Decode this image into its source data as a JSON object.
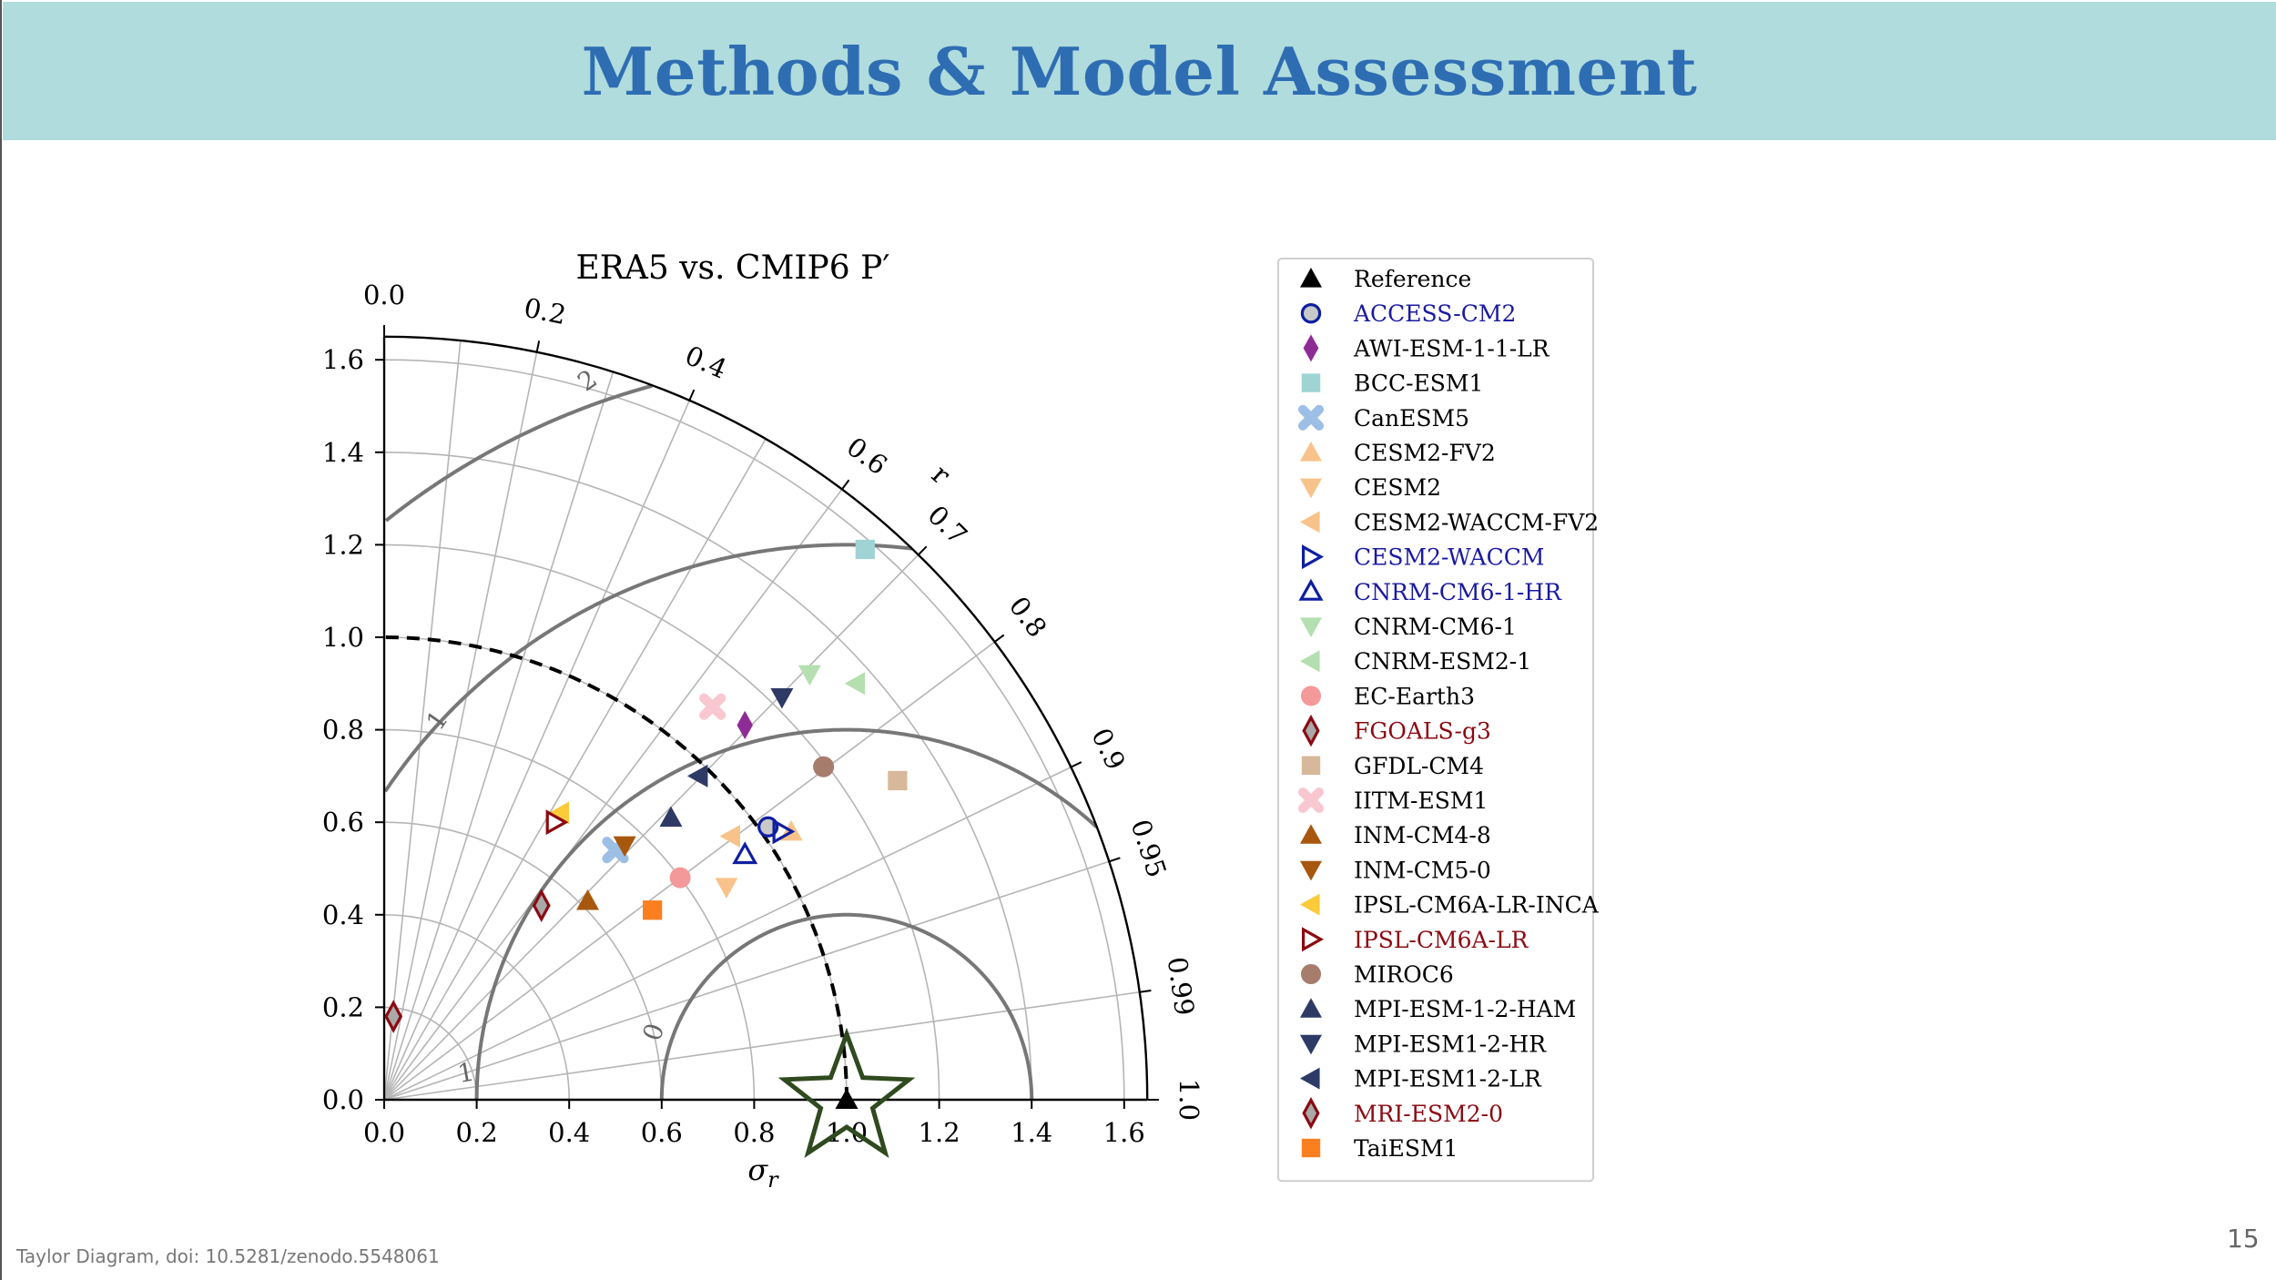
{
  "slide": {
    "title": "Methods & Model Assessment",
    "footnote": "Taylor Diagram, doi: 10.5281/zenodo.5548061",
    "page_number": "15"
  },
  "chart_data": {
    "type": "scatter",
    "subtype": "taylor-diagram",
    "title": "ERA5 vs. CMIP6 P′",
    "xlabel": "σr",
    "corr_axis_label": "r",
    "std_ticks": [
      "0.0",
      "0.2",
      "0.4",
      "0.6",
      "0.8",
      "1.0",
      "1.2",
      "1.4",
      "1.6"
    ],
    "std_tick_values": [
      0,
      0.2,
      0.4,
      0.6,
      0.8,
      1.0,
      1.2,
      1.4,
      1.6
    ],
    "corr_ticks": [
      {
        "value": 0.0,
        "label": "0.0"
      },
      {
        "value": 0.2,
        "label": "0.2"
      },
      {
        "value": 0.4,
        "label": "0.4"
      },
      {
        "value": 0.6,
        "label": "0.6"
      },
      {
        "value": 0.7,
        "label": "0.7"
      },
      {
        "value": 0.8,
        "label": "0.8"
      },
      {
        "value": 0.9,
        "label": "0.9"
      },
      {
        "value": 0.95,
        "label": "0.95"
      },
      {
        "value": 0.99,
        "label": "0.99"
      },
      {
        "value": 1.0,
        "label": "1.0"
      }
    ],
    "rmsd_contours": [
      {
        "value": 0,
        "label": "0"
      },
      {
        "value": 1,
        "label": "1"
      },
      {
        "value": 2,
        "label": "2"
      }
    ],
    "rmsd_contour_values": [
      0.4,
      0.8,
      1.2,
      1.6,
      2.0
    ],
    "std_range": [
      0,
      1.65
    ],
    "grid": true,
    "legend_position": "right",
    "reference": {
      "name": "Reference",
      "x": 1.0,
      "y": 0.0
    },
    "series": [
      {
        "name": "Reference",
        "marker": "triangle-up",
        "color": "#000000",
        "label_color": "#000000",
        "x": 1.0,
        "y": 0.0
      },
      {
        "name": "ACCESS-CM2",
        "marker": "circle-open",
        "color": "#0f1fa0",
        "fill": "#c9c9c9",
        "label_color": "#1a1aa0",
        "x": 0.83,
        "y": 0.59
      },
      {
        "name": "AWI-ESM-1-1-LR",
        "marker": "diamond",
        "color": "#8e2c96",
        "label_color": "#000000",
        "x": 0.78,
        "y": 0.81
      },
      {
        "name": "BCC-ESM1",
        "marker": "square",
        "color": "#9fd3d4",
        "label_color": "#000000",
        "x": 1.04,
        "y": 1.19
      },
      {
        "name": "CanESM5",
        "marker": "x",
        "color": "#9dbfe6",
        "label_color": "#000000",
        "x": 0.5,
        "y": 0.54
      },
      {
        "name": "CESM2-FV2",
        "marker": "triangle-up",
        "color": "#f8c38a",
        "label_color": "#000000",
        "x": 0.88,
        "y": 0.58
      },
      {
        "name": "CESM2",
        "marker": "triangle-down",
        "color": "#f8c38a",
        "label_color": "#000000",
        "x": 0.74,
        "y": 0.46
      },
      {
        "name": "CESM2-WACCM-FV2",
        "marker": "triangle-left",
        "color": "#f8c38a",
        "label_color": "#000000",
        "x": 0.75,
        "y": 0.57
      },
      {
        "name": "CESM2-WACCM",
        "marker": "triangle-right-open",
        "color": "#0f1fa0",
        "label_color": "#1a1aa0",
        "x": 0.86,
        "y": 0.58
      },
      {
        "name": "CNRM-CM6-1-HR",
        "marker": "triangle-up-open",
        "color": "#0f1fa0",
        "label_color": "#1a1aa0",
        "x": 0.78,
        "y": 0.53
      },
      {
        "name": "CNRM-CM6-1",
        "marker": "triangle-down",
        "color": "#b5dfb0",
        "label_color": "#000000",
        "x": 0.92,
        "y": 0.92
      },
      {
        "name": "CNRM-ESM2-1",
        "marker": "triangle-left",
        "color": "#b5dfb0",
        "label_color": "#000000",
        "x": 1.02,
        "y": 0.9
      },
      {
        "name": "EC-Earth3",
        "marker": "circle",
        "color": "#f4999a",
        "label_color": "#000000",
        "x": 0.64,
        "y": 0.48
      },
      {
        "name": "FGOALS-g3",
        "marker": "diamond-open",
        "color": "#8b0a12",
        "fill": "#a9a9a9",
        "label_color": "#8b0a12",
        "x": 0.34,
        "y": 0.42
      },
      {
        "name": "GFDL-CM4",
        "marker": "square",
        "color": "#d8b89a",
        "label_color": "#000000",
        "x": 1.11,
        "y": 0.69
      },
      {
        "name": "IITM-ESM1",
        "marker": "x",
        "color": "#f9c7d0",
        "label_color": "#000000",
        "x": 0.71,
        "y": 0.85
      },
      {
        "name": "INM-CM4-8",
        "marker": "triangle-up",
        "color": "#a8570f",
        "label_color": "#000000",
        "x": 0.44,
        "y": 0.43
      },
      {
        "name": "INM-CM5-0",
        "marker": "triangle-down",
        "color": "#a8570f",
        "label_color": "#000000",
        "x": 0.52,
        "y": 0.55
      },
      {
        "name": "IPSL-CM6A-LR-INCA",
        "marker": "triangle-left",
        "color": "#fccb3a",
        "label_color": "#000000",
        "x": 0.38,
        "y": 0.62
      },
      {
        "name": "IPSL-CM6A-LR",
        "marker": "triangle-right-open",
        "color": "#8b0a12",
        "label_color": "#8b0a12",
        "x": 0.37,
        "y": 0.6
      },
      {
        "name": "MIROC6",
        "marker": "circle",
        "color": "#a67c6d",
        "label_color": "#000000",
        "x": 0.95,
        "y": 0.72
      },
      {
        "name": "MPI-ESM-1-2-HAM",
        "marker": "triangle-up",
        "color": "#2e3a66",
        "label_color": "#000000",
        "x": 0.62,
        "y": 0.61
      },
      {
        "name": "MPI-ESM1-2-HR",
        "marker": "triangle-down",
        "color": "#2e3a66",
        "label_color": "#000000",
        "x": 0.86,
        "y": 0.87
      },
      {
        "name": "MPI-ESM1-2-LR",
        "marker": "triangle-left",
        "color": "#2e3a66",
        "label_color": "#000000",
        "x": 0.68,
        "y": 0.7
      },
      {
        "name": "MRI-ESM2-0",
        "marker": "diamond-open",
        "color": "#8b0a12",
        "fill": "#a9a9a9",
        "label_color": "#8b0a12",
        "x": 0.02,
        "y": 0.18
      },
      {
        "name": "TaiESM1",
        "marker": "square",
        "color": "#fb7f1f",
        "label_color": "#000000",
        "x": 0.58,
        "y": 0.41
      }
    ],
    "colors": {
      "rmsd_contour": "#777777",
      "grid": "#b5b5b5",
      "reference_arc": "#000000",
      "star_outline": "#2f4a1f"
    }
  }
}
